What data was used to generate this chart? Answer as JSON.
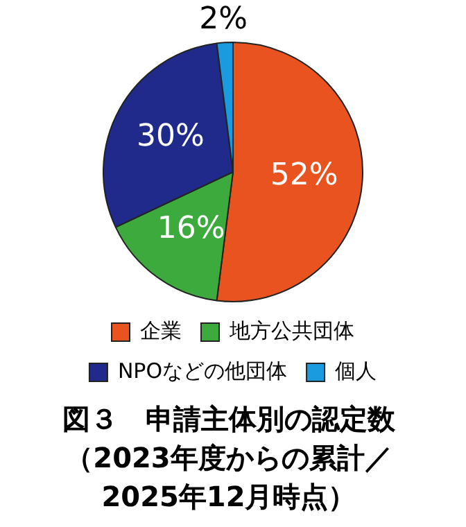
{
  "chart_data": {
    "type": "pie",
    "title": "図３　申請主体別の認定数（2023年度からの累計／2025年12月時点）",
    "categories": [
      "企業",
      "地方公共団体",
      "NPOなどの他団体",
      "個人"
    ],
    "values": [
      52,
      16,
      30,
      2
    ],
    "colors": [
      "#e8531f",
      "#3daa3d",
      "#1f2a8a",
      "#1a9be0"
    ],
    "value_labels": [
      "52%",
      "16%",
      "30%",
      "2%"
    ],
    "legend": "bottom"
  }
}
